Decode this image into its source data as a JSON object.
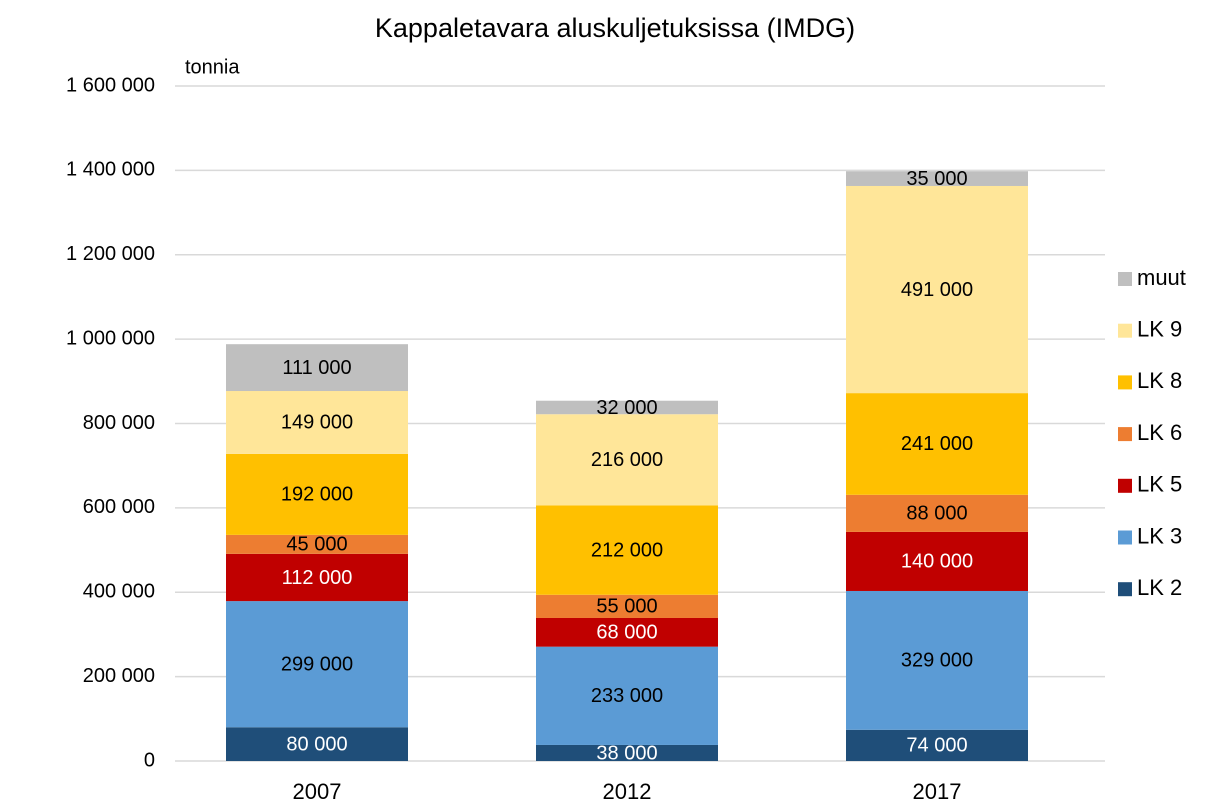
{
  "chart_data": {
    "type": "stacked_bar",
    "title": "Kappaletavara aluskuljetuksissa (IMDG)",
    "y_label": "tonnia",
    "categories": [
      "2007",
      "2012",
      "2017"
    ],
    "series": [
      {
        "name": "LK 2",
        "color": "#1f4e79",
        "values": [
          80000,
          38000,
          74000
        ],
        "value_labels": [
          "80 000",
          "38 000",
          "74 000"
        ]
      },
      {
        "name": "LK 3",
        "color": "#5b9bd5",
        "values": [
          299000,
          233000,
          329000
        ],
        "value_labels": [
          "299 000",
          "233 000",
          "329 000"
        ]
      },
      {
        "name": "LK 5",
        "color": "#c00000",
        "values": [
          112000,
          68000,
          140000
        ],
        "value_labels": [
          "112 000",
          "68 000",
          "140 000"
        ]
      },
      {
        "name": "LK 6",
        "color": "#ed7d31",
        "values": [
          45000,
          55000,
          88000
        ],
        "value_labels": [
          "45 000",
          "55 000",
          "88 000"
        ]
      },
      {
        "name": "LK 8",
        "color": "#ffc000",
        "values": [
          192000,
          212000,
          241000
        ],
        "value_labels": [
          "192 000",
          "212 000",
          "241 000"
        ]
      },
      {
        "name": "LK 9",
        "color": "#ffe699",
        "values": [
          149000,
          216000,
          491000
        ],
        "value_labels": [
          "149 000",
          "216 000",
          "491 000"
        ]
      },
      {
        "name": "muut",
        "color": "#bfbfbf",
        "values": [
          111000,
          32000,
          35000
        ],
        "value_labels": [
          "111 000",
          "32 000",
          "35 000"
        ]
      }
    ],
    "ylim": [
      0,
      1600000
    ],
    "yticks": [
      0,
      {
        "value": 200000,
        "label": "200 000"
      },
      {
        "value": 400000,
        "label": "400 000"
      },
      {
        "value": 600000,
        "label": "600 000"
      },
      {
        "value": 800000,
        "label": "800 000"
      },
      {
        "value": 1000000,
        "label": "1 000 000"
      },
      {
        "value": 1200000,
        "label": "1 200 000"
      },
      {
        "value": 1400000,
        "label": "1 400 000"
      },
      {
        "value": 1600000,
        "label": "1 600 000"
      }
    ],
    "grid": true,
    "legend": "right"
  }
}
